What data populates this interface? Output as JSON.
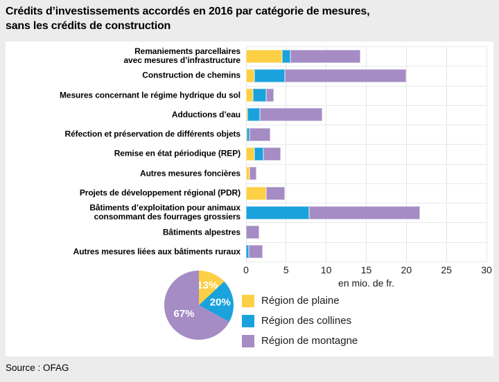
{
  "title": "Crédits d’investissements accordés en 2016 par catégorie de mesures,\nsans les crédits de construction",
  "source": "Source : OFAG",
  "colors": {
    "plaine": "#fccf45",
    "collines": "#1aa2dc",
    "montagne": "#a58cc4",
    "panel": "#ffffff",
    "background": "#ececec",
    "grid": "#e5e5e5"
  },
  "legend": {
    "items": [
      {
        "label": "Région de plaine",
        "color": "#fccf45"
      },
      {
        "label": "Région des collines",
        "color": "#1aa2dc"
      },
      {
        "label": "Région de montagne",
        "color": "#a58cc4"
      }
    ]
  },
  "chart_data": [
    {
      "type": "bar",
      "orientation": "horizontal",
      "stacked": true,
      "title": "Crédits d’investissements accordés en 2016 par catégorie de mesures, sans les crédits de construction",
      "xlabel": "en mio. de fr.",
      "xlim": [
        0,
        30
      ],
      "xticks": [
        0,
        5,
        10,
        15,
        20,
        25,
        30
      ],
      "grid": true,
      "categories": [
        "Remaniements parcellaires\navec mesures d’infrastructure",
        "Construction de chemins",
        "Mesures concernant le régime hydrique du sol",
        "Adductions d’eau",
        "Réfection et préservation de différents objets",
        "Remise en état périodique (REP)",
        "Autres mesures foncières",
        "Projets de développement régional (PDR)",
        "Bâtiments d’exploitation pour animaux\nconsommant des fourrages grossiers",
        "Bâtiments alpestres",
        "Autres mesures liées aux bâtiments ruraux"
      ],
      "series": [
        {
          "name": "Région de plaine",
          "color": "#fccf45",
          "values": [
            4.5,
            1.0,
            0.9,
            0.2,
            0.1,
            1.0,
            0.4,
            2.5,
            0.0,
            0.0,
            0.0
          ]
        },
        {
          "name": "Région des collines",
          "color": "#1aa2dc",
          "values": [
            1.0,
            3.8,
            1.6,
            1.5,
            0.3,
            1.2,
            0.0,
            0.0,
            7.9,
            0.0,
            0.35
          ]
        },
        {
          "name": "Région de montagne",
          "color": "#a58cc4",
          "values": [
            8.8,
            15.2,
            1.0,
            7.8,
            2.6,
            2.1,
            0.9,
            2.3,
            13.8,
            1.6,
            1.7
          ]
        }
      ]
    },
    {
      "type": "pie",
      "labels": [
        "Région de plaine",
        "Région des collines",
        "Région de montagne"
      ],
      "values": [
        13,
        20,
        67
      ],
      "value_labels": [
        "13%",
        "20%",
        "67%"
      ],
      "colors": [
        "#fccf45",
        "#1aa2dc",
        "#a58cc4"
      ],
      "start_angle_deg": 0,
      "direction": "clockwise"
    }
  ]
}
